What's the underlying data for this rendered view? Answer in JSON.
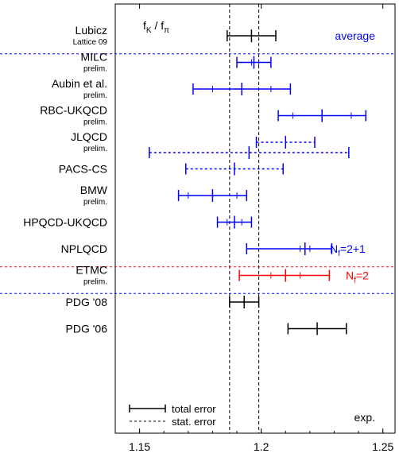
{
  "chart_data": {
    "type": "scatter",
    "orientation": "horizontal-error-bars",
    "title": "f_K / f_π",
    "title_main": "f",
    "title_sub1": "K",
    "title_sep": " / f",
    "title_sub2": "π",
    "xlabel": "",
    "ylabel": "",
    "xlim": [
      1.14,
      1.255
    ],
    "xticks": [
      1.15,
      1.2,
      1.25
    ],
    "xtick_labels": [
      "1.15",
      "1.2",
      "1.25"
    ],
    "grid": false,
    "vlines": [
      1.187,
      1.199
    ],
    "separators_after": [
      {
        "after_index": 0,
        "color": "#0000ff"
      },
      {
        "after_index": 8,
        "color": "#ff0000"
      },
      {
        "after_index": 9,
        "color": "#0000ff"
      }
    ],
    "colors": {
      "blue": "#0000ff",
      "red": "#ff0000",
      "black": "#000000"
    },
    "entries": [
      {
        "label": "Lubicz",
        "sublabel": "Lattice 09",
        "small_label": true,
        "value": 1.196,
        "total": [
          1.186,
          1.206
        ],
        "stat": null,
        "color": "black",
        "total_style": "solid"
      },
      {
        "label": "MILC",
        "sublabel": "prelim.",
        "value": 1.197,
        "total": [
          1.19,
          1.204
        ],
        "stat": [
          1.196,
          1.199
        ],
        "color": "blue",
        "total_style": "solid"
      },
      {
        "label": "Aubin et al.",
        "sublabel": "prelim.",
        "value": 1.192,
        "total": [
          1.172,
          1.212
        ],
        "stat": [
          1.18,
          1.204
        ],
        "color": "blue",
        "total_style": "solid"
      },
      {
        "label": "RBC-UKQCD",
        "sublabel": "prelim.",
        "value": 1.225,
        "total": [
          1.207,
          1.243
        ],
        "stat": [
          1.213,
          1.237
        ],
        "color": "blue",
        "total_style": "solid"
      },
      {
        "label": "JLQCD",
        "sublabel": "prelim.",
        "value": 1.21,
        "total": null,
        "stat": [
          1.198,
          1.222
        ],
        "color": "blue",
        "extra_points": [
          {
            "value": 1.195,
            "stat": [
              1.154,
              1.236
            ]
          }
        ]
      },
      {
        "label": "PACS-CS",
        "sublabel": "",
        "value": 1.189,
        "total": null,
        "stat": [
          1.169,
          1.209
        ],
        "color": "blue"
      },
      {
        "label": "BMW",
        "sublabel": "prelim.",
        "value": 1.18,
        "total": [
          1.166,
          1.194
        ],
        "stat": [
          1.17,
          1.19
        ],
        "color": "blue",
        "total_style": "solid"
      },
      {
        "label": "HPQCD-UKQCD",
        "sublabel": "",
        "value": 1.189,
        "total": [
          1.182,
          1.196
        ],
        "stat": [
          1.186,
          1.192
        ],
        "color": "blue",
        "total_style": "solid"
      },
      {
        "label": "NPLQCD",
        "sublabel": "",
        "value": 1.218,
        "total": [
          1.194,
          1.229
        ],
        "stat": [
          1.216,
          1.22
        ],
        "color": "blue",
        "total_style": "solid"
      },
      {
        "label": "ETMC",
        "sublabel": "prelim.",
        "value": 1.21,
        "total": [
          1.191,
          1.228
        ],
        "stat": [
          1.204,
          1.216
        ],
        "color": "red",
        "total_style": "solid"
      },
      {
        "label": "PDG '08",
        "sublabel": "",
        "value": 1.193,
        "total": [
          1.187,
          1.199
        ],
        "stat": null,
        "color": "black",
        "total_style": "solid"
      },
      {
        "label": "PDG '06",
        "sublabel": "",
        "value": 1.223,
        "total": [
          1.211,
          1.235
        ],
        "stat": null,
        "color": "black",
        "total_style": "solid"
      }
    ],
    "annotations": {
      "average": "average",
      "nf21_main": "N",
      "nf21_sub": "f",
      "nf21_rest": "=2+1",
      "nf2_main": "N",
      "nf2_sub": "f",
      "nf2_rest": "=2",
      "exp": "exp."
    },
    "legend": {
      "placement": "bottom-left",
      "items": [
        {
          "label": "total error",
          "style": "solid"
        },
        {
          "label": "stat. error",
          "style": "dashed"
        }
      ]
    }
  }
}
